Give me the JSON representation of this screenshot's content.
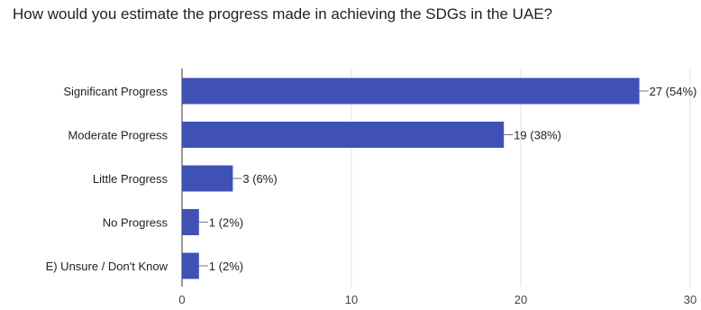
{
  "title": "How would you estimate the progress made in achieving the SDGs in the UAE?",
  "chart_data": {
    "type": "bar",
    "orientation": "horizontal",
    "title": "How would you estimate the progress made in achieving the SDGs in the UAE?",
    "categories": [
      "Significant Progress",
      "Moderate Progress",
      "Little Progress",
      "No Progress",
      "E) Unsure / Don't Know"
    ],
    "values": [
      27,
      19,
      3,
      1,
      1
    ],
    "data_labels": [
      "27 (54%)",
      "19 (38%)",
      "3 (6%)",
      "1 (2%)",
      "1 (2%)"
    ],
    "xlim": [
      0,
      30
    ],
    "x_ticks": [
      0,
      10,
      20,
      30
    ],
    "grid": true,
    "legend": "none",
    "bar_color": "#3f51b5"
  }
}
